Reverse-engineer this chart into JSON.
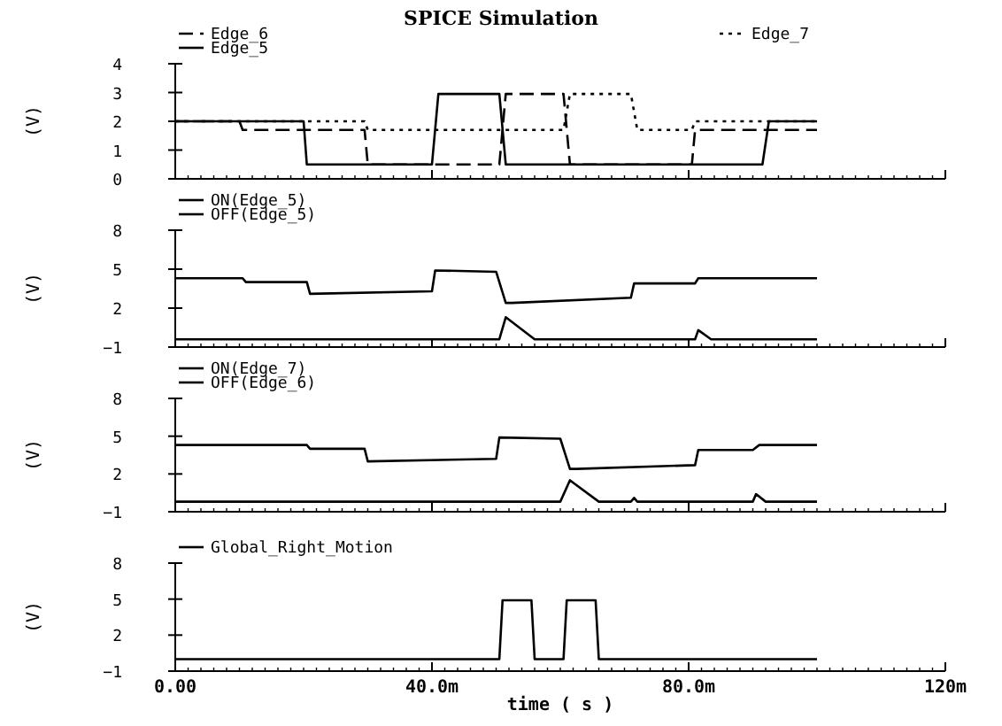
{
  "chart_data": [
    {
      "type": "line",
      "title": "SPICE Simulation",
      "ylabel": "(V)",
      "xlim": [
        0,
        120
      ],
      "xticks": [
        {
          "value": 0,
          "label": null
        },
        {
          "value": 40,
          "label": null
        },
        {
          "value": 80,
          "label": null
        },
        {
          "value": 120,
          "label": null
        }
      ],
      "ylim": [
        0,
        4
      ],
      "yticks": [
        0,
        1,
        2,
        3,
        4
      ],
      "tick_labels": "y",
      "legend": "top left",
      "series": [
        {
          "name": "Edge_6",
          "color": "#000000",
          "line_style": "dashed",
          "x": [
            0,
            10,
            10.5,
            29.5,
            30,
            50.5,
            51.5,
            60.5,
            61.5,
            80.5,
            81,
            100
          ],
          "values": [
            2,
            2,
            1.7,
            1.7,
            0.5,
            0.5,
            2.95,
            2.95,
            0.5,
            0.5,
            1.7,
            1.7
          ]
        },
        {
          "name": "Edge_5",
          "color": "#000000",
          "line_style": "solid",
          "x": [
            0,
            20,
            20.5,
            40,
            41,
            50.5,
            51.5,
            91.5,
            92.5,
            100
          ],
          "values": [
            2,
            2,
            0.5,
            0.5,
            2.95,
            2.95,
            0.5,
            0.5,
            2,
            2
          ]
        },
        {
          "name": "Edge_7",
          "color": "#000000",
          "line_style": "dotted",
          "x": [
            0,
            29.5,
            30,
            60.5,
            61.5,
            71,
            72,
            80.5,
            81,
            100
          ],
          "values": [
            2,
            2,
            1.7,
            1.7,
            2.95,
            2.95,
            1.7,
            1.7,
            2,
            2
          ]
        }
      ]
    },
    {
      "type": "line",
      "ylabel": "(V)",
      "xlim": [
        0,
        120
      ],
      "xticks": [
        {
          "value": 0,
          "label": null
        },
        {
          "value": 40,
          "label": null
        },
        {
          "value": 80,
          "label": null
        },
        {
          "value": 120,
          "label": null
        }
      ],
      "ylim": [
        -1,
        8
      ],
      "yticks": [
        -1,
        2,
        5,
        8
      ],
      "tick_labels": "y",
      "legend": "top left",
      "series": [
        {
          "name": "ON(Edge_5)",
          "color": "#000000",
          "line_style": "solid",
          "x": [
            0,
            10.5,
            11,
            20.5,
            21,
            40,
            40.5,
            50,
            51.5,
            52.5,
            71,
            71.5,
            81,
            81.5,
            100
          ],
          "values": [
            4.3,
            4.3,
            4.0,
            4.0,
            3.1,
            3.3,
            4.9,
            4.8,
            2.4,
            2.4,
            2.8,
            3.9,
            3.9,
            4.3,
            4.3
          ]
        },
        {
          "name": "OFF(Edge_5)",
          "color": "#000000",
          "line_style": "solid",
          "x": [
            0,
            50.5,
            51.5,
            56,
            81,
            81.5,
            83.5,
            100
          ],
          "values": [
            -0.4,
            -0.4,
            1.3,
            -0.4,
            -0.4,
            0.3,
            -0.4,
            -0.4
          ]
        }
      ]
    },
    {
      "type": "line",
      "ylabel": "(V)",
      "xlim": [
        0,
        120
      ],
      "xticks": [
        {
          "value": 0,
          "label": null
        },
        {
          "value": 40,
          "label": null
        },
        {
          "value": 80,
          "label": null
        },
        {
          "value": 120,
          "label": null
        }
      ],
      "ylim": [
        -1,
        8
      ],
      "yticks": [
        -1,
        2,
        5,
        8
      ],
      "tick_labels": "y",
      "legend": "top left",
      "series": [
        {
          "name": "ON(Edge_7)",
          "color": "#000000",
          "line_style": "solid",
          "x": [
            0,
            20.5,
            21,
            29.5,
            30,
            50,
            50.5,
            60,
            61.5,
            62.5,
            81,
            81.5,
            90,
            91,
            100
          ],
          "values": [
            4.3,
            4.3,
            4.0,
            4.0,
            3.0,
            3.2,
            4.9,
            4.8,
            2.4,
            2.4,
            2.7,
            3.9,
            3.9,
            4.3,
            4.3
          ]
        },
        {
          "name": "OFF(Edge_6)",
          "color": "#000000",
          "line_style": "solid",
          "x": [
            0,
            60,
            61.5,
            66,
            71,
            71.5,
            72,
            90,
            90.5,
            92,
            100
          ],
          "values": [
            -0.2,
            -0.2,
            1.5,
            -0.2,
            -0.2,
            0.1,
            -0.2,
            -0.2,
            0.4,
            -0.2,
            -0.2
          ]
        }
      ]
    },
    {
      "type": "line",
      "ylabel": "(V)",
      "xlabel": "time ( s )",
      "xlim": [
        0,
        120
      ],
      "xticks": [
        {
          "value": 0,
          "label": "0.00"
        },
        {
          "value": 40,
          "label": "40.0m"
        },
        {
          "value": 80,
          "label": "80.0m"
        },
        {
          "value": 120,
          "label": "120m"
        }
      ],
      "ylim": [
        -1,
        8
      ],
      "yticks": [
        -1,
        2,
        5,
        8
      ],
      "legend": "top left",
      "series": [
        {
          "name": "Global_Right_Motion",
          "color": "#000000",
          "line_style": "solid",
          "x": [
            0,
            50.5,
            51,
            55.5,
            56,
            60.5,
            61,
            65.5,
            66,
            100
          ],
          "values": [
            0,
            0,
            4.9,
            4.9,
            0,
            0,
            4.9,
            4.9,
            0,
            0
          ]
        }
      ]
    }
  ]
}
